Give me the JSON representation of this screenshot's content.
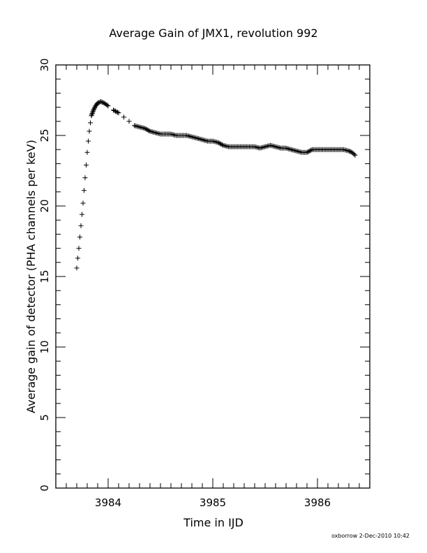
{
  "chart_data": {
    "type": "scatter",
    "title": "Average Gain of JMX1, revolution 992",
    "xlabel": "Time in IJD",
    "ylabel": "Average gain of detector (PHA channels per keV)",
    "xlim": [
      3983.5,
      3986.5
    ],
    "ylim": [
      0,
      30
    ],
    "x_ticks": [
      "3984",
      "3985",
      "3986"
    ],
    "y_ticks": [
      "0",
      "5",
      "10",
      "15",
      "20",
      "25",
      "30"
    ],
    "grid": false,
    "marker": "plus",
    "color": "#000000",
    "series": [
      {
        "points": [
          [
            3983.7,
            15.6
          ],
          [
            3983.71,
            16.3
          ],
          [
            3983.72,
            17.0
          ],
          [
            3983.73,
            17.8
          ],
          [
            3983.74,
            18.6
          ],
          [
            3983.75,
            19.4
          ],
          [
            3983.76,
            20.2
          ],
          [
            3983.77,
            21.1
          ],
          [
            3983.78,
            22.0
          ],
          [
            3983.79,
            22.9
          ],
          [
            3983.8,
            23.8
          ],
          [
            3983.81,
            24.6
          ],
          [
            3983.82,
            25.3
          ],
          [
            3983.83,
            25.9
          ],
          [
            3983.84,
            26.4
          ],
          [
            3983.86,
            26.8
          ],
          [
            3983.88,
            27.1
          ],
          [
            3983.9,
            27.3
          ],
          [
            3983.93,
            27.4
          ],
          [
            3983.96,
            27.3
          ],
          [
            3984.0,
            27.1
          ],
          [
            3984.05,
            26.8
          ],
          [
            3984.1,
            26.6
          ],
          [
            3984.15,
            26.3
          ],
          [
            3984.2,
            26.0
          ],
          [
            3984.25,
            25.7
          ],
          [
            3984.3,
            25.6
          ],
          [
            3984.35,
            25.5
          ],
          [
            3984.4,
            25.3
          ],
          [
            3984.45,
            25.2
          ],
          [
            3984.5,
            25.1
          ],
          [
            3984.55,
            25.1
          ],
          [
            3984.6,
            25.1
          ],
          [
            3984.65,
            25.0
          ],
          [
            3984.7,
            25.0
          ],
          [
            3984.75,
            25.0
          ],
          [
            3984.8,
            24.9
          ],
          [
            3984.85,
            24.8
          ],
          [
            3984.9,
            24.7
          ],
          [
            3984.95,
            24.6
          ],
          [
            3985.0,
            24.6
          ],
          [
            3985.05,
            24.5
          ],
          [
            3985.1,
            24.3
          ],
          [
            3985.15,
            24.2
          ],
          [
            3985.2,
            24.2
          ],
          [
            3985.25,
            24.2
          ],
          [
            3985.3,
            24.2
          ],
          [
            3985.35,
            24.2
          ],
          [
            3985.4,
            24.2
          ],
          [
            3985.45,
            24.1
          ],
          [
            3985.5,
            24.2
          ],
          [
            3985.55,
            24.3
          ],
          [
            3985.6,
            24.2
          ],
          [
            3985.65,
            24.1
          ],
          [
            3985.7,
            24.1
          ],
          [
            3985.75,
            24.0
          ],
          [
            3985.8,
            23.9
          ],
          [
            3985.85,
            23.8
          ],
          [
            3985.9,
            23.8
          ],
          [
            3985.95,
            24.0
          ],
          [
            3986.0,
            24.0
          ],
          [
            3986.05,
            24.0
          ],
          [
            3986.1,
            24.0
          ],
          [
            3986.15,
            24.0
          ],
          [
            3986.2,
            24.0
          ],
          [
            3986.25,
            24.0
          ],
          [
            3986.3,
            23.9
          ],
          [
            3986.33,
            23.8
          ],
          [
            3986.36,
            23.6
          ]
        ]
      }
    ]
  },
  "footer": "oxborrow  2-Dec-2010 10:42"
}
